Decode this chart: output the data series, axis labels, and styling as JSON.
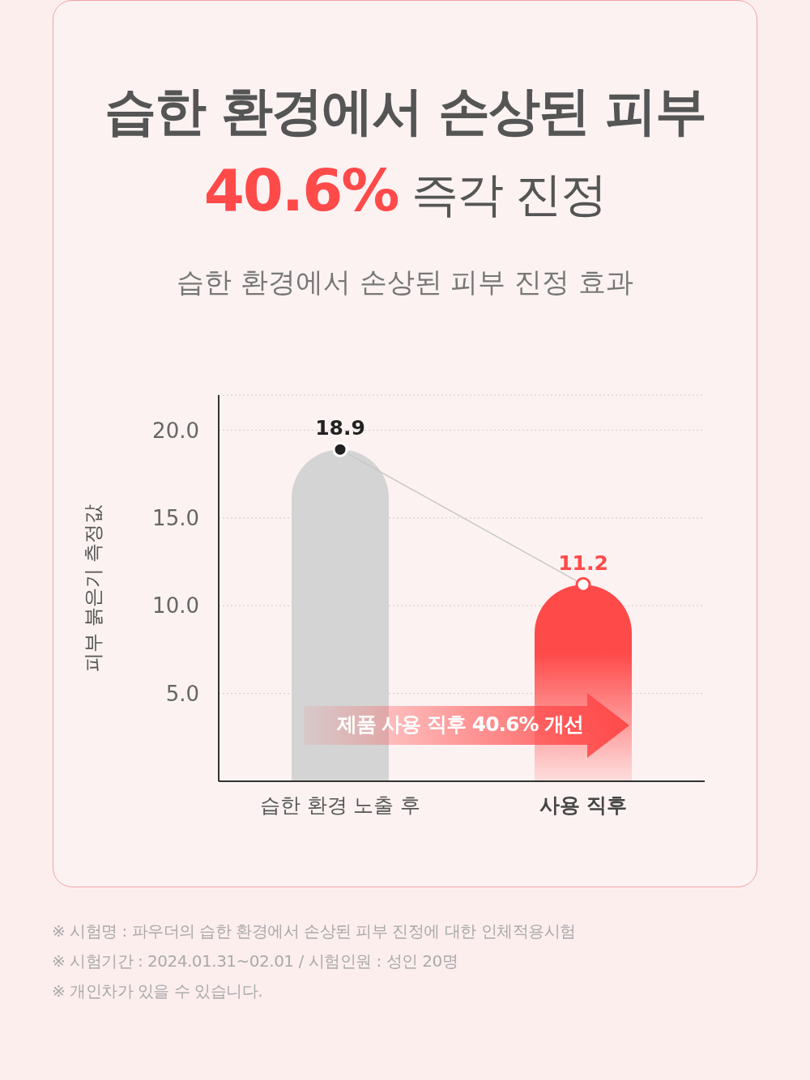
{
  "chart_data": {
    "type": "bar",
    "title": "습한 환경에서 손상된 피부\n40.6% 즉각 진정",
    "subtitle": "습한 환경에서 손상된 피부 진정 효과",
    "ylabel": "피부 붉은기 측정값",
    "categories": [
      "습한 환경 노출 후",
      "사용 직후"
    ],
    "series": [
      {
        "colors": [
          "#d4d4d4",
          "#ff4a4a"
        ],
        "values": [
          18.9,
          11.2
        ]
      },
      {
        "type": "line",
        "color": "#c8c8c8",
        "marker": "circle",
        "values": [
          18.9,
          11.2
        ],
        "value_labels": [
          "18.9",
          "11.2"
        ]
      }
    ],
    "ylim": [
      0,
      22
    ],
    "yticks": [
      {
        "value": 5,
        "label": "5.0"
      },
      {
        "value": 10,
        "label": "10.0"
      },
      {
        "value": 15,
        "label": "15.0"
      },
      {
        "value": 20,
        "label": "20.0"
      }
    ],
    "grid": "y",
    "annotations": [
      "제품 사용 직후 40.6% 개선",
      "※ 시험명 : 파우더의 습한 환경에서 손상된 피부 진정에 대한 인체적용시험",
      "※ 시험기간 : 2024.01.31~02.01 / 시험인원 : 성인 20명",
      "※ 개인차가 있을 수 있습니다."
    ]
  }
}
